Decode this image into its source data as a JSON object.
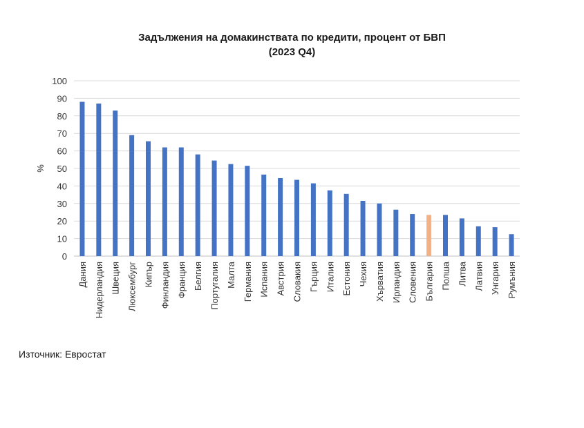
{
  "chart_data": {
    "type": "bar",
    "title": "Задължения на домакинствата по кредити, процент от БВП",
    "subtitle": "(2023 Q4)",
    "xlabel": "",
    "ylabel": "%",
    "ylim": [
      0,
      100
    ],
    "yticks": [
      0,
      10,
      20,
      30,
      40,
      50,
      60,
      70,
      80,
      90,
      100
    ],
    "grid": true,
    "categories": [
      "Дания",
      "Нидерландия",
      "Швеция",
      "Люксембург",
      "Кипър",
      "Финландия",
      "Франция",
      "Белгия",
      "Португалия",
      "Малта",
      "Германия",
      "Испания",
      "Австрия",
      "Словакия",
      "Гърция",
      "Италия",
      "Естония",
      "Чехия",
      "Хърватия",
      "Ирландия",
      "Словения",
      "България",
      "Полша",
      "Литва",
      "Латвия",
      "Унгария",
      "Румъния"
    ],
    "values": [
      88,
      87,
      83,
      69,
      65.5,
      62,
      62,
      58,
      54.5,
      52.5,
      51.5,
      46.5,
      44.5,
      43.5,
      41.5,
      37.5,
      35.5,
      31.5,
      30,
      26.5,
      24,
      23.5,
      23.5,
      21.5,
      17,
      16.5,
      12.5
    ],
    "bar_color": "#4472C4",
    "highlight_category": "България",
    "highlight_color": "#F4B183"
  },
  "source": "Източник: Евростат"
}
